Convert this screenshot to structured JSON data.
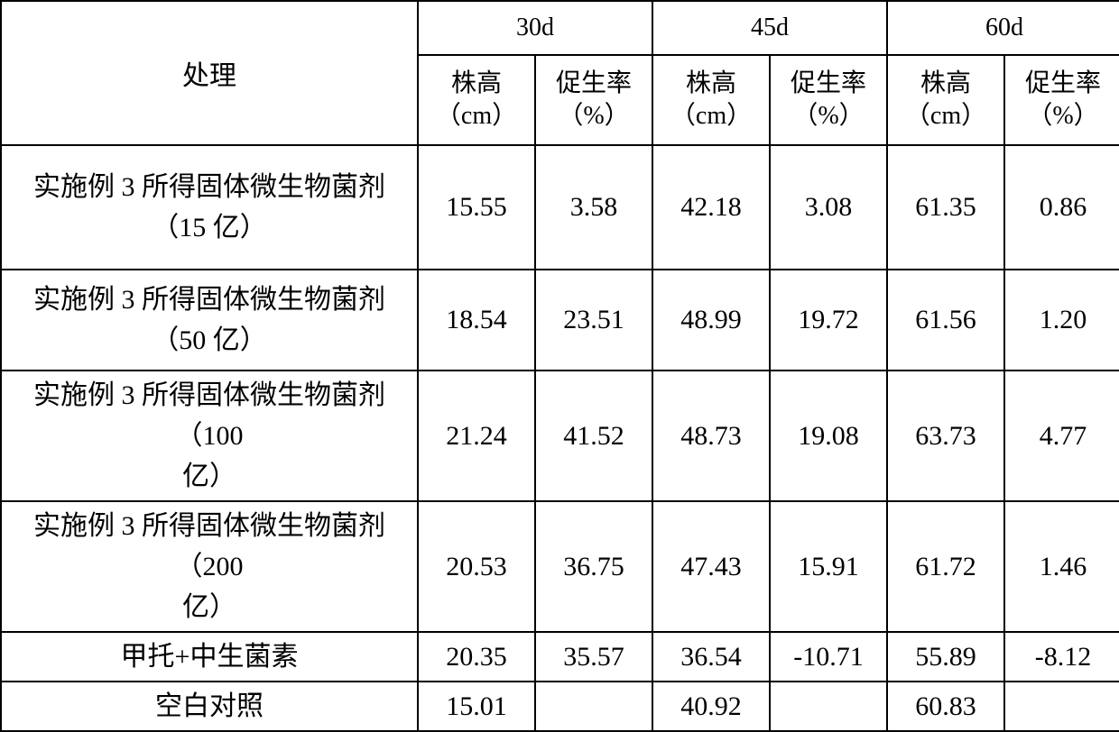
{
  "table": {
    "type": "table",
    "background_color": "#ffffff",
    "border_color": "#000000",
    "header": {
      "treatment_label": "处理",
      "groups": [
        "30d",
        "45d",
        "60d"
      ],
      "subcols": [
        {
          "height": "株高",
          "height_unit": "（cm）",
          "rate": "促生率",
          "rate_unit": "（%）"
        },
        {
          "height": "株高",
          "height_unit": "（cm）",
          "rate": "促生率",
          "rate_unit": "（%）"
        },
        {
          "height": "株高",
          "height_unit": "（cm）",
          "rate": "促生率",
          "rate_unit": "（%）"
        }
      ]
    },
    "rows": [
      {
        "label_line1": "实施例 3 所得固体微生物菌剂",
        "label_line2": "（15 亿）",
        "d30_height": "15.55",
        "d30_rate": "3.58",
        "d45_height": "42.18",
        "d45_rate": "3.08",
        "d60_height": "61.35",
        "d60_rate": "0.86"
      },
      {
        "label_line1": "实施例 3 所得固体微生物菌剂",
        "label_line2": "（50 亿）",
        "d30_height": "18.54",
        "d30_rate": "23.51",
        "d45_height": "48.99",
        "d45_rate": "19.72",
        "d60_height": "61.56",
        "d60_rate": "1.20"
      },
      {
        "label_line1": "实施例 3 所得固体微生物菌剂（100",
        "label_line2": "亿）",
        "d30_height": "21.24",
        "d30_rate": "41.52",
        "d45_height": "48.73",
        "d45_rate": "19.08",
        "d60_height": "63.73",
        "d60_rate": "4.77"
      },
      {
        "label_line1": "实施例 3 所得固体微生物菌剂（200",
        "label_line2": "亿）",
        "d30_height": "20.53",
        "d30_rate": "36.75",
        "d45_height": "47.43",
        "d45_rate": "15.91",
        "d60_height": "61.72",
        "d60_rate": "1.46"
      },
      {
        "label_line1": "甲托+中生菌素",
        "label_line2": "",
        "d30_height": "20.35",
        "d30_rate": "35.57",
        "d45_height": "36.54",
        "d45_rate": "-10.71",
        "d60_height": "55.89",
        "d60_rate": "-8.12"
      },
      {
        "label_line1": "空白对照",
        "label_line2": "",
        "d30_height": "15.01",
        "d30_rate": "",
        "d45_height": "40.92",
        "d45_rate": "",
        "d60_height": "60.83",
        "d60_rate": ""
      }
    ],
    "column_widths": {
      "treatment": 462,
      "data": 130
    },
    "font_sizes": {
      "header": 28,
      "body": 30
    }
  }
}
